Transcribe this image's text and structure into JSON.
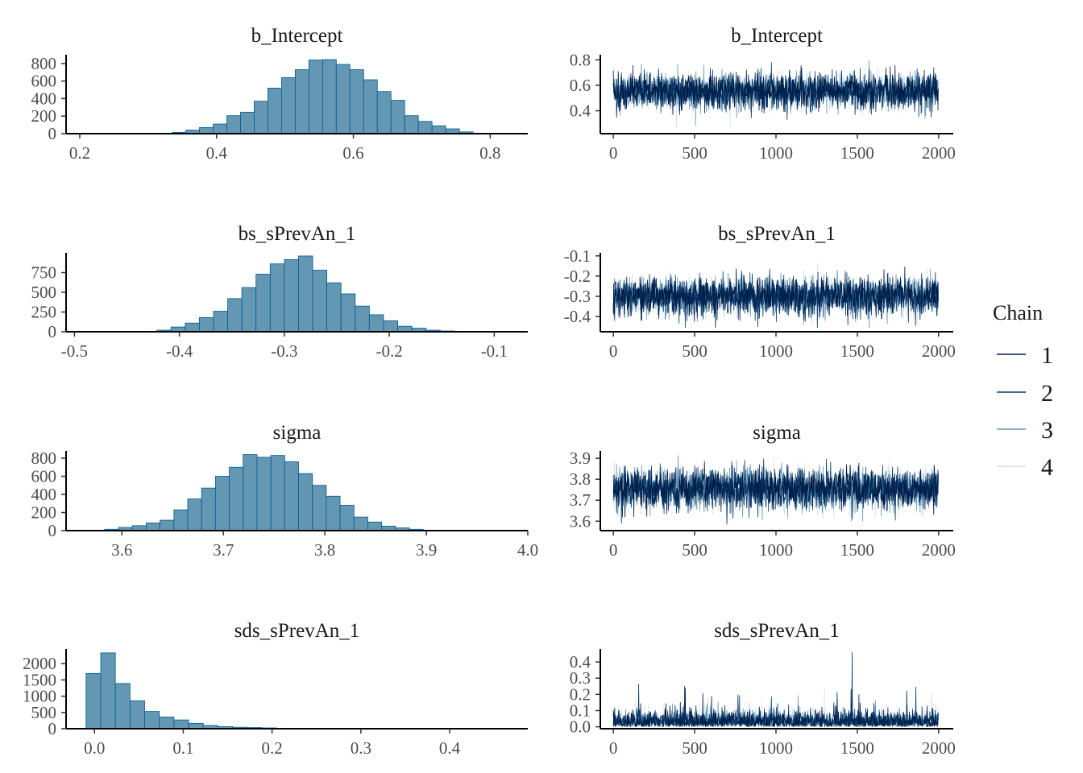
{
  "colors": {
    "bar_fill": "#6497b1",
    "bar_outline": "#005b96",
    "chain_colors": [
      "#011f4b",
      "#03396c",
      "#6497b1",
      "#d1e1ec"
    ]
  },
  "legend": {
    "title": "Chain",
    "items": [
      "1",
      "2",
      "3",
      "4"
    ]
  },
  "chart_data": [
    {
      "type": "bar",
      "subtype": "histogram",
      "title": "b_Intercept",
      "xlim": [
        0.18,
        0.855
      ],
      "ylim": [
        0,
        900
      ],
      "xticks": [
        0.2,
        0.4,
        0.6,
        0.8
      ],
      "xtick_labels": [
        "0.2",
        "0.4",
        "0.6",
        "0.8"
      ],
      "yticks": [
        0,
        200,
        400,
        600,
        800
      ],
      "ytick_labels": [
        "0",
        "200",
        "400",
        "600",
        "800"
      ],
      "bin_start": 0.315,
      "bin_width": 0.02,
      "values": [
        2,
        15,
        40,
        70,
        110,
        205,
        245,
        370,
        520,
        640,
        730,
        840,
        845,
        790,
        730,
        615,
        480,
        380,
        205,
        140,
        90,
        55,
        20,
        5
      ]
    },
    {
      "type": "line",
      "subtype": "trace",
      "title": "b_Intercept",
      "xlim": [
        -80,
        2090
      ],
      "ylim": [
        0.22,
        0.84
      ],
      "xticks": [
        0,
        500,
        1000,
        1500,
        2000
      ],
      "xtick_labels": [
        "0",
        "500",
        "1000",
        "1500",
        "2000"
      ],
      "yticks": [
        0.4,
        0.6,
        0.8
      ],
      "ytick_labels": [
        "0.4",
        "0.6",
        "0.8"
      ],
      "iterations": 2000,
      "center": 0.555,
      "spread": 0.07,
      "extremes": [
        0.26,
        0.8
      ],
      "series": [
        "1",
        "2",
        "3",
        "4"
      ]
    },
    {
      "type": "bar",
      "subtype": "histogram",
      "title": "bs_sPrevAn_1",
      "xlim": [
        -0.508,
        -0.068
      ],
      "ylim": [
        0,
        1000
      ],
      "xticks": [
        -0.5,
        -0.4,
        -0.3,
        -0.2,
        -0.1
      ],
      "xtick_labels": [
        "-0.5",
        "-0.4",
        "-0.3",
        "-0.2",
        "-0.1"
      ],
      "yticks": [
        0,
        250,
        500,
        750
      ],
      "ytick_labels": [
        "0",
        "250",
        "500",
        "750"
      ],
      "bin_start": -0.435,
      "bin_width": 0.0135,
      "values": [
        5,
        20,
        60,
        110,
        180,
        260,
        420,
        560,
        730,
        860,
        915,
        960,
        780,
        620,
        480,
        325,
        215,
        140,
        70,
        45,
        20,
        10,
        3
      ]
    },
    {
      "type": "line",
      "subtype": "trace",
      "title": "bs_sPrevAn_1",
      "xlim": [
        -80,
        2090
      ],
      "ylim": [
        -0.475,
        -0.085
      ],
      "xticks": [
        0,
        500,
        1000,
        1500,
        2000
      ],
      "xtick_labels": [
        "0",
        "500",
        "1000",
        "1500",
        "2000"
      ],
      "yticks": [
        -0.4,
        -0.3,
        -0.2,
        -0.1
      ],
      "ytick_labels": [
        "-0.4",
        "-0.3",
        "-0.2",
        "-0.1"
      ],
      "iterations": 2000,
      "center": -0.3,
      "spread": 0.045,
      "extremes": [
        -0.455,
        -0.1
      ],
      "series": [
        "1",
        "2",
        "3",
        "4"
      ]
    },
    {
      "type": "bar",
      "subtype": "histogram",
      "title": "sigma",
      "xlim": [
        3.545,
        4.0
      ],
      "ylim": [
        0,
        880
      ],
      "xticks": [
        3.6,
        3.7,
        3.8,
        3.9,
        4.0
      ],
      "xtick_labels": [
        "3.6",
        "3.7",
        "3.8",
        "3.9",
        "4.0"
      ],
      "yticks": [
        0,
        200,
        400,
        600,
        800
      ],
      "ytick_labels": [
        "0",
        "200",
        "400",
        "600",
        "800"
      ],
      "bin_start": 3.583,
      "bin_width": 0.01365,
      "values": [
        15,
        35,
        55,
        85,
        115,
        230,
        350,
        470,
        600,
        700,
        840,
        810,
        830,
        760,
        630,
        500,
        380,
        280,
        150,
        95,
        50,
        30,
        15
      ]
    },
    {
      "type": "line",
      "subtype": "trace",
      "title": "sigma",
      "xlim": [
        -80,
        2090
      ],
      "ylim": [
        3.555,
        3.935
      ],
      "xticks": [
        0,
        500,
        1000,
        1500,
        2000
      ],
      "xtick_labels": [
        "0",
        "500",
        "1000",
        "1500",
        "2000"
      ],
      "yticks": [
        3.6,
        3.7,
        3.8,
        3.9
      ],
      "ytick_labels": [
        "3.6",
        "3.7",
        "3.8",
        "3.9"
      ],
      "iterations": 2000,
      "center": 3.755,
      "spread": 0.048,
      "extremes": [
        3.57,
        3.93
      ],
      "series": [
        "1",
        "2",
        "3",
        "4"
      ]
    },
    {
      "type": "bar",
      "subtype": "histogram",
      "title": "sds_sPrevAn_1",
      "xlim": [
        -0.032,
        0.488
      ],
      "ylim": [
        0,
        2450
      ],
      "xticks": [
        0.0,
        0.1,
        0.2,
        0.3,
        0.4
      ],
      "xtick_labels": [
        "0.0",
        "0.1",
        "0.2",
        "0.3",
        "0.4"
      ],
      "yticks": [
        0,
        500,
        1000,
        1500,
        2000
      ],
      "ytick_labels": [
        "0",
        "500",
        "1000",
        "1500",
        "2000"
      ],
      "bin_start": -0.0095,
      "bin_width": 0.0165,
      "values": [
        1700,
        2330,
        1390,
        860,
        530,
        360,
        270,
        165,
        100,
        65,
        45,
        35,
        25,
        15,
        8,
        5,
        3,
        2
      ]
    },
    {
      "type": "line",
      "subtype": "trace",
      "title": "sds_sPrevAn_1",
      "xlim": [
        -80,
        2090
      ],
      "ylim": [
        -0.012,
        0.48
      ],
      "xticks": [
        0,
        500,
        1000,
        1500,
        2000
      ],
      "xtick_labels": [
        "0",
        "500",
        "1000",
        "1500",
        "2000"
      ],
      "yticks": [
        0.0,
        0.1,
        0.2,
        0.3,
        0.4
      ],
      "ytick_labels": [
        "0.0",
        "0.1",
        "0.2",
        "0.3",
        "0.4"
      ],
      "iterations": 2000,
      "center": 0.05,
      "spread": 0.045,
      "extremes": [
        0.0,
        0.46
      ],
      "series": [
        "1",
        "2",
        "3",
        "4"
      ]
    }
  ]
}
